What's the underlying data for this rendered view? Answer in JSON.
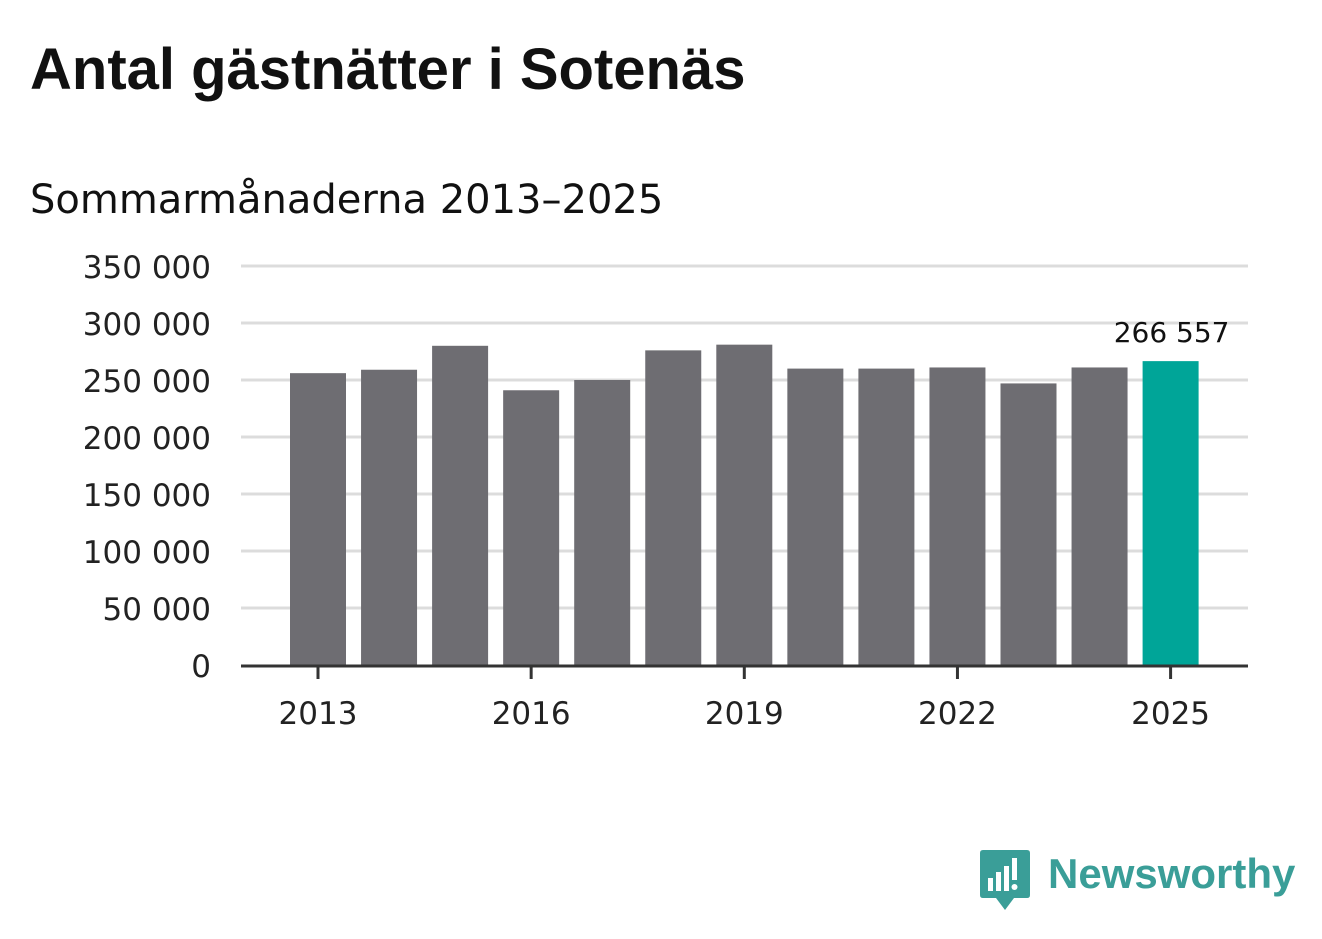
{
  "title": "Antal gästnätter i Sotenäs",
  "subtitle": "Sommarmånaderna 2013–2025",
  "brand": {
    "name": "Newsworthy",
    "icon": "newsworthy-logo-icon",
    "color": "#3a9e98"
  },
  "colors": {
    "bar": "#6e6d72",
    "highlight": "#00a598",
    "grid": "#dcdcdc",
    "axis": "#333333",
    "text": "#111111"
  },
  "chart_data": {
    "type": "bar",
    "title": "Antal gästnätter i Sotenäs",
    "subtitle": "Sommarmånaderna 2013–2025",
    "xlabel": "",
    "ylabel": "",
    "categories": [
      "2013",
      "2014",
      "2015",
      "2016",
      "2017",
      "2018",
      "2019",
      "2020",
      "2021",
      "2022",
      "2023",
      "2024",
      "2025"
    ],
    "values": [
      256000,
      259000,
      280000,
      241000,
      250000,
      276000,
      281000,
      260000,
      260000,
      261000,
      247000,
      261000,
      266557
    ],
    "ylim": [
      0,
      350000
    ],
    "yticks": [
      0,
      50000,
      100000,
      150000,
      200000,
      250000,
      300000,
      350000
    ],
    "ytick_labels": [
      "0",
      "50 000",
      "100 000",
      "150 000",
      "200 000",
      "250 000",
      "300 000",
      "350 000"
    ],
    "xtick_labels": [
      "2013",
      "2016",
      "2019",
      "2022",
      "2025"
    ],
    "highlight_category": "2025",
    "highlight_label": "266 557",
    "grid": true,
    "legend": "none"
  }
}
